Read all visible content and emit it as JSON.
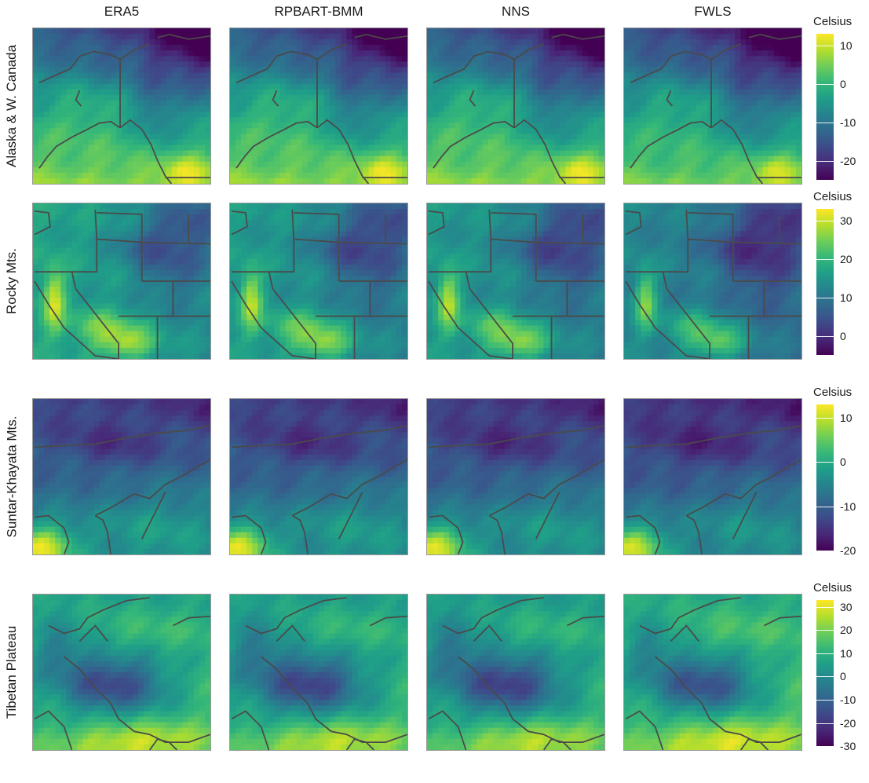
{
  "chart_data": {
    "type": "heatmap",
    "title": "",
    "columns": [
      "ERA5",
      "RPBART-BMM",
      "NNS",
      "FWLS"
    ],
    "rows": [
      {
        "region": "Alaska & W. Canada",
        "legend_title": "Celsius",
        "scale_range": [
          -25,
          13
        ],
        "ticks": [
          -20,
          -10,
          0,
          10
        ],
        "map": "alaska",
        "field": "alaska",
        "column_shift": [
          0.0,
          0.0,
          0.0,
          -0.04
        ]
      },
      {
        "region": "Rocky Mts.",
        "legend_title": "Celsius",
        "scale_range": [
          -5,
          33
        ],
        "ticks": [
          0,
          10,
          20,
          30
        ],
        "map": "rocky",
        "field": "rocky",
        "column_shift": [
          0.0,
          -0.04,
          -0.05,
          -0.12
        ]
      },
      {
        "region": "Suntar-Khayata Mts.",
        "legend_title": "Celsius",
        "scale_range": [
          -20,
          13
        ],
        "ticks": [
          -20,
          -10,
          0,
          10
        ],
        "map": "suntar",
        "field": "suntar",
        "column_shift": [
          0.0,
          -0.01,
          -0.02,
          -0.04
        ]
      },
      {
        "region": "Tibetan Plateau",
        "legend_title": "Celsius",
        "scale_range": [
          -30,
          33
        ],
        "ticks": [
          -30,
          -20,
          -10,
          0,
          10,
          20,
          30
        ],
        "map": "tibet",
        "field": "tibet",
        "column_shift": [
          0.0,
          -0.02,
          -0.03,
          0.03
        ]
      }
    ],
    "colorscale": "viridis",
    "viridis_stops": [
      "#440154",
      "#482878",
      "#3e4a89",
      "#31688e",
      "#26828e",
      "#1f9e89",
      "#35b779",
      "#6dcd59",
      "#b4de2c",
      "#fde725"
    ]
  }
}
